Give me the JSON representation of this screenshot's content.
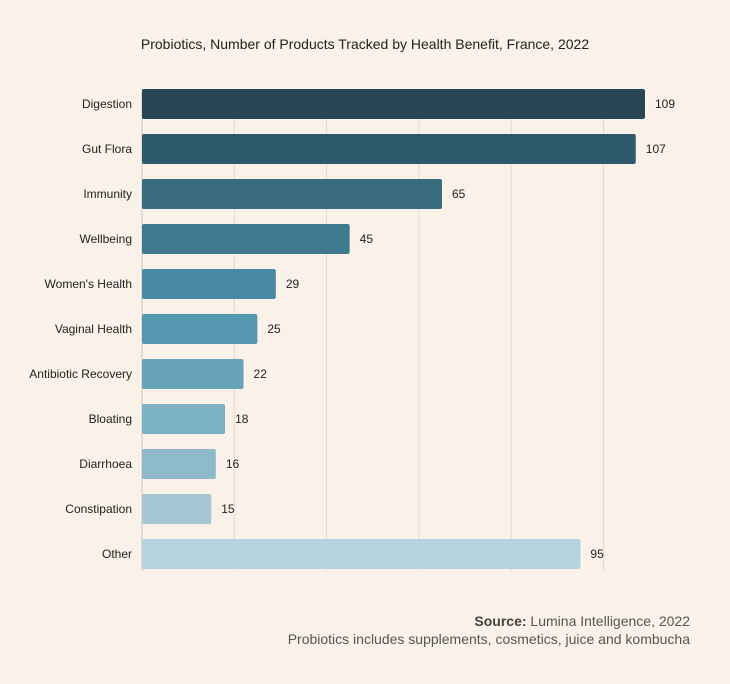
{
  "chart_data": {
    "type": "bar",
    "orientation": "horizontal",
    "title": "Probiotics, Number of Products Tracked by Health Benefit, France, 2022",
    "categories": [
      "Digestion",
      "Gut Flora",
      "Immunity",
      "Wellbeing",
      "Women's Health",
      "Vaginal Health",
      "Antibiotic Recovery",
      "Bloating",
      "Diarrhoea",
      "Constipation",
      "Other"
    ],
    "values": [
      109,
      107,
      65,
      45,
      29,
      25,
      22,
      18,
      16,
      15,
      95
    ],
    "xlim": [
      0,
      110
    ],
    "grid": true,
    "colors": [
      "#264653",
      "#2f5a6b",
      "#386b7d",
      "#3f7990",
      "#4a89a3",
      "#5697b1",
      "#67a4bb",
      "#7cb0c4",
      "#8fbaca",
      "#a4c7d3",
      "#b6d4df"
    ]
  },
  "footer": {
    "source_label": "Source:",
    "source_text": " Lumina Intelligence, 2022",
    "note": "Probiotics includes supplements, cosmetics, juice and kombucha"
  }
}
